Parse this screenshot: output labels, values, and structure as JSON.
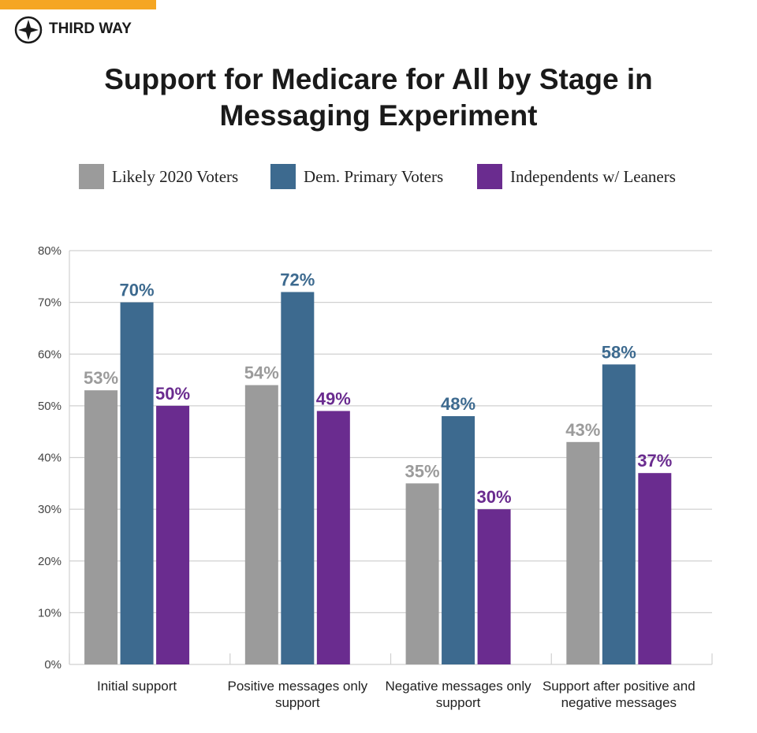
{
  "brand": "THIRD WAY",
  "chart_data": {
    "type": "bar",
    "title": "Support for Medicare for All by Stage in Messaging Experiment",
    "categories": [
      "Initial support",
      "Positive messages only support",
      "Negative messages only support",
      "Support after positive and negative messages"
    ],
    "series": [
      {
        "name": "Likely 2020 Voters",
        "color": "#9b9b9b",
        "values": [
          53,
          54,
          35,
          43
        ],
        "value_labels": [
          "53%",
          "54%",
          "35%",
          "43%"
        ]
      },
      {
        "name": "Dem. Primary Voters",
        "color": "#3d6a8f",
        "values": [
          70,
          72,
          48,
          58
        ],
        "value_labels": [
          "70%",
          "72%",
          "48%",
          "58%"
        ]
      },
      {
        "name": "Independents w/ Leaners",
        "color": "#6a2c8f",
        "values": [
          50,
          49,
          30,
          37
        ],
        "value_labels": [
          "50%",
          "49%",
          "30%",
          "37%"
        ]
      }
    ],
    "ylim": [
      0,
      80
    ],
    "yticks": [
      {
        "value": 0,
        "label": "0%"
      },
      {
        "value": 10,
        "label": "10%"
      },
      {
        "value": 20,
        "label": "20%"
      },
      {
        "value": 30,
        "label": "30%"
      },
      {
        "value": 40,
        "label": "40%"
      },
      {
        "value": 50,
        "label": "50%"
      },
      {
        "value": 60,
        "label": "60%"
      },
      {
        "value": 70,
        "label": "70%"
      },
      {
        "value": 80,
        "label": "80%"
      }
    ],
    "grid": true
  }
}
